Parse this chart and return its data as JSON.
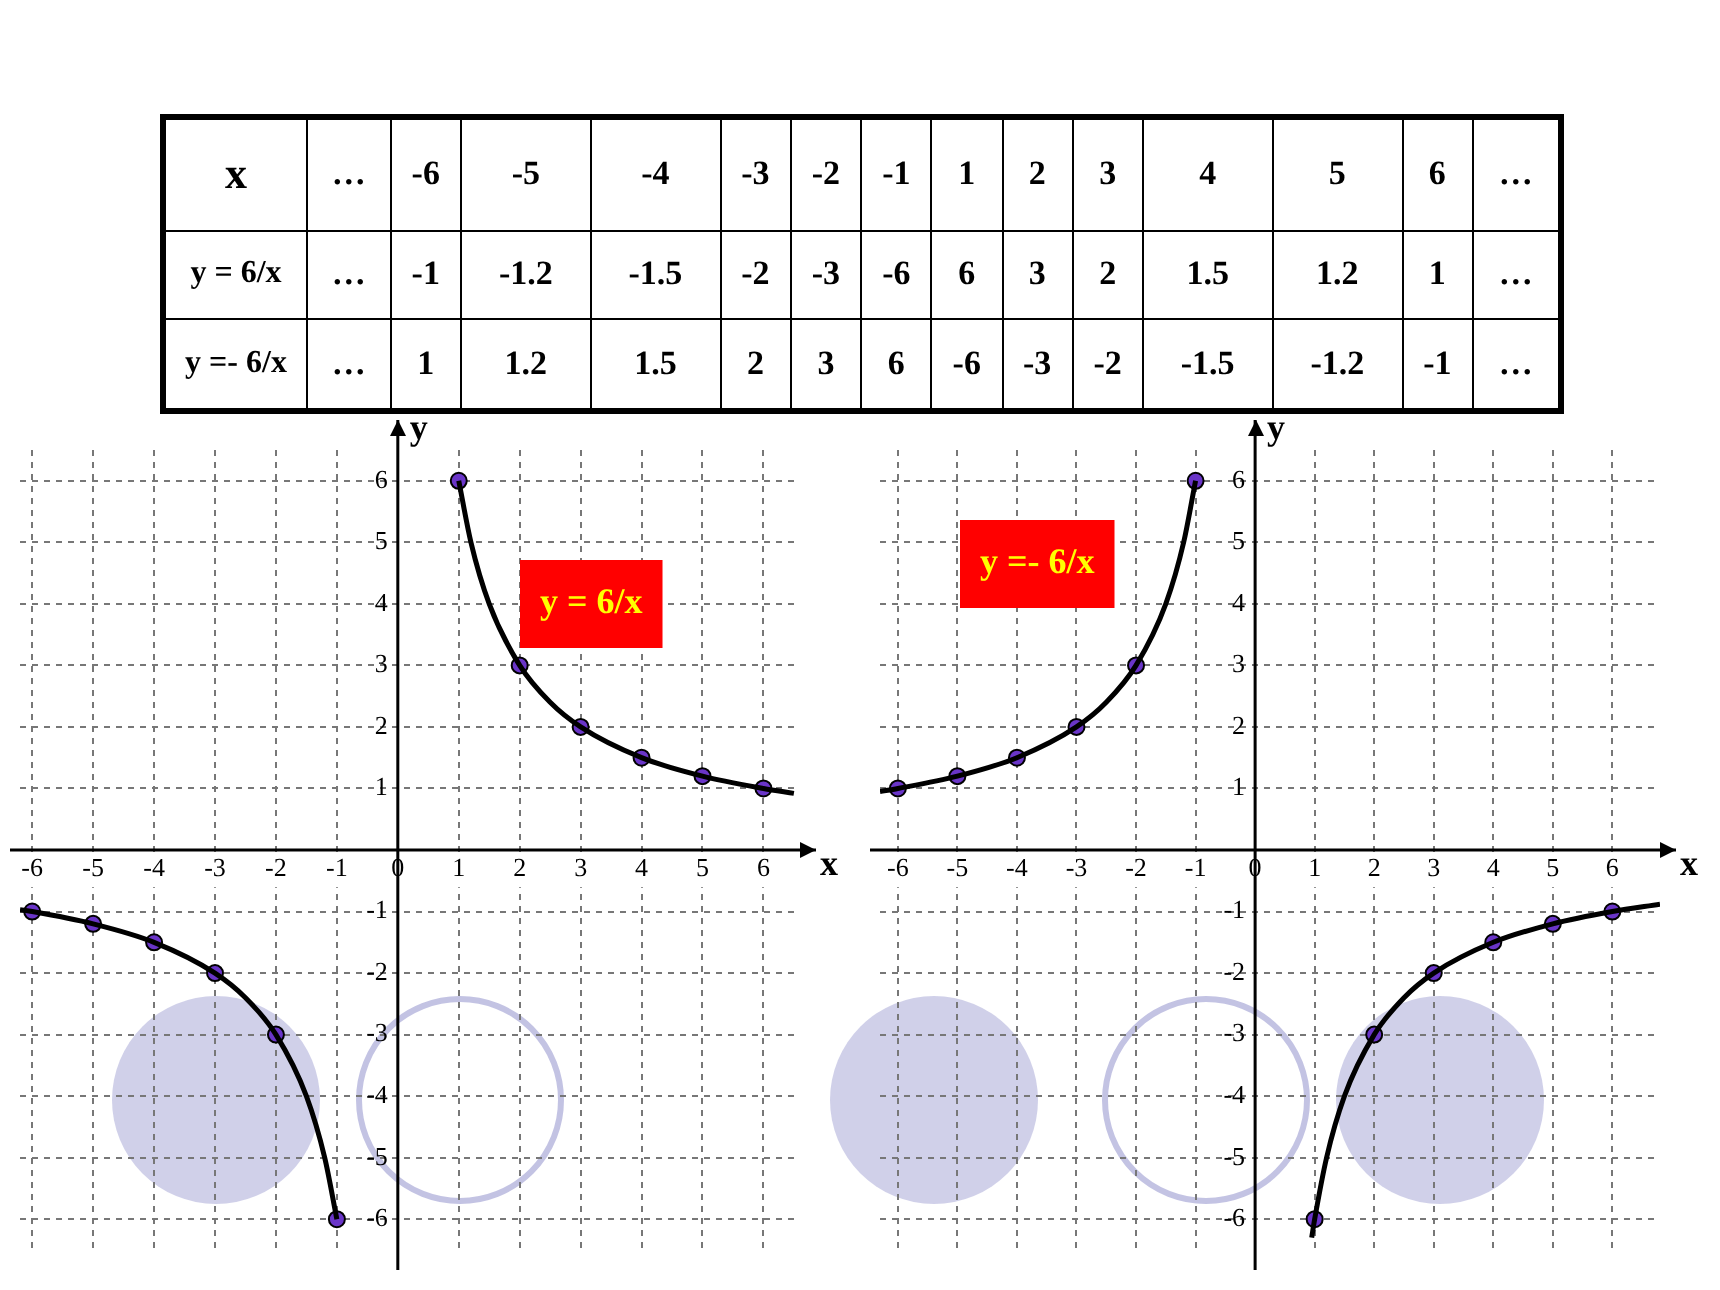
{
  "chart_data": [
    {
      "type": "other",
      "xlabel": "x",
      "categories": [
        "…",
        "-6",
        "-5",
        "-4",
        "-3",
        "-2",
        "-1",
        "1",
        "2",
        "3",
        "4",
        "5",
        "6",
        "…"
      ],
      "y_categories": [
        "y = 6/x",
        "y =- 6/x"
      ],
      "cell_labels": [
        [
          "…",
          "-1",
          "-1.2",
          "-1.5",
          "-2",
          "-3",
          "-6",
          "6",
          "3",
          "2",
          "1.5",
          "1.2",
          "1",
          "…"
        ],
        [
          "…",
          "1",
          "1.2",
          "1.5",
          "2",
          "3",
          "6",
          "-6",
          "-3",
          "-2",
          "-1.5",
          "-1.2",
          "-1",
          "…"
        ]
      ]
    },
    {
      "type": "scatter",
      "xlabel": "x",
      "ylabel": "y",
      "annotations": [
        "y = 6/x"
      ],
      "xlim": [
        -6.2,
        6.6
      ],
      "ylim": [
        -6.5,
        6.5
      ],
      "xticks": [
        -6,
        -5,
        -4,
        -3,
        -2,
        -1,
        0,
        1,
        2,
        3,
        4,
        5,
        6
      ],
      "yticks": [
        -6,
        -5,
        -4,
        -3,
        -2,
        -1,
        1,
        2,
        3,
        4,
        5,
        6
      ],
      "grid": true,
      "marker": "circle",
      "series": [
        {
          "type": "line",
          "marker": "none",
          "color": "#000000",
          "x": [
            -6.2,
            -6,
            -5,
            -4,
            -3,
            -2.5,
            -2,
            -1.5,
            -1.2,
            -1,
            null,
            1,
            1.2,
            1.5,
            2,
            2.5,
            3,
            4,
            5,
            6,
            6.5
          ],
          "values": [
            -0.97,
            -1,
            -1.2,
            -1.5,
            -2,
            -2.4,
            -3,
            -4,
            -5,
            -6,
            null,
            6,
            5,
            4,
            3,
            2.4,
            2,
            1.5,
            1.2,
            1,
            0.92
          ]
        },
        {
          "type": "scatter",
          "color": "#6a35c8",
          "x": [
            -6,
            -5,
            -4,
            -3,
            -2,
            -1,
            1,
            2,
            3,
            4,
            5,
            6
          ],
          "values": [
            -1,
            -1.2,
            -1.5,
            -2,
            -3,
            -6,
            6,
            3,
            2,
            1.5,
            1.2,
            1
          ]
        }
      ]
    },
    {
      "type": "scatter",
      "xlabel": "x",
      "ylabel": "y",
      "annotations": [
        "y =- 6/x"
      ],
      "xlim": [
        -6.3,
        6.8
      ],
      "ylim": [
        -6.5,
        6.5
      ],
      "xticks": [
        -6,
        -5,
        -4,
        -3,
        -2,
        -1,
        0,
        1,
        2,
        3,
        4,
        5,
        6
      ],
      "yticks": [
        -6,
        -5,
        -4,
        -3,
        -2,
        -1,
        1,
        2,
        3,
        4,
        5,
        6
      ],
      "grid": true,
      "marker": "circle",
      "series": [
        {
          "type": "line",
          "marker": "none",
          "color": "#000000",
          "x": [
            -6.3,
            -6,
            -5,
            -4,
            -3,
            -2.5,
            -2,
            -1.5,
            -1.2,
            -1,
            null,
            0.95,
            1,
            1.2,
            1.5,
            2,
            2.5,
            3,
            4,
            5,
            6,
            6.8
          ],
          "values": [
            0.95,
            1,
            1.2,
            1.5,
            2,
            2.4,
            3,
            4,
            5,
            6,
            null,
            -6.3,
            -6,
            -5,
            -4,
            -3,
            -2.4,
            -2,
            -1.5,
            -1.2,
            -1,
            -0.88
          ]
        },
        {
          "type": "scatter",
          "color": "#6a35c8",
          "x": [
            -6,
            -5,
            -4,
            -3,
            -2,
            -1,
            1,
            2,
            3,
            4,
            5,
            6
          ],
          "values": [
            1,
            1.2,
            1.5,
            2,
            3,
            6,
            -6,
            -3,
            -2,
            -1.5,
            -1.2,
            -1
          ]
        }
      ]
    }
  ]
}
